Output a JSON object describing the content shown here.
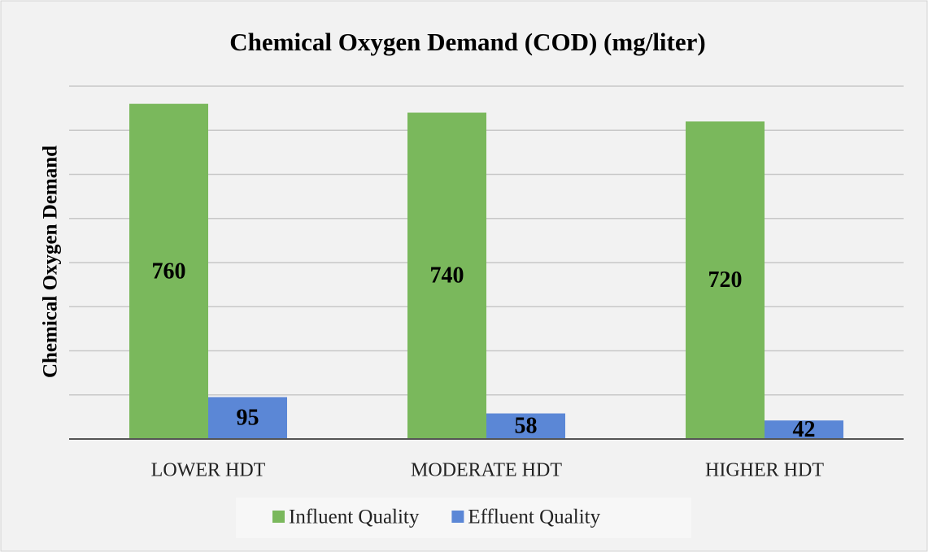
{
  "chart_data": {
    "type": "bar",
    "title": "Chemical Oxygen Demand (COD) (mg/liter)",
    "y_label": "Chemical Oxygen Demand",
    "categories": [
      "LOWER HDT",
      "MODERATE HDT",
      "HIGHER HDT"
    ],
    "series": [
      {
        "name": "Influent Quality",
        "color": "#7ab85c",
        "values": [
          760,
          740,
          720
        ]
      },
      {
        "name": "Effluent Quality",
        "color": "#5b87d6",
        "values": [
          95,
          58,
          42
        ]
      }
    ],
    "ylim": [
      0,
      800
    ],
    "yticks": [
      0,
      100,
      200,
      300,
      400,
      500,
      600,
      700,
      800
    ],
    "grid": true,
    "legend": "bottom"
  }
}
